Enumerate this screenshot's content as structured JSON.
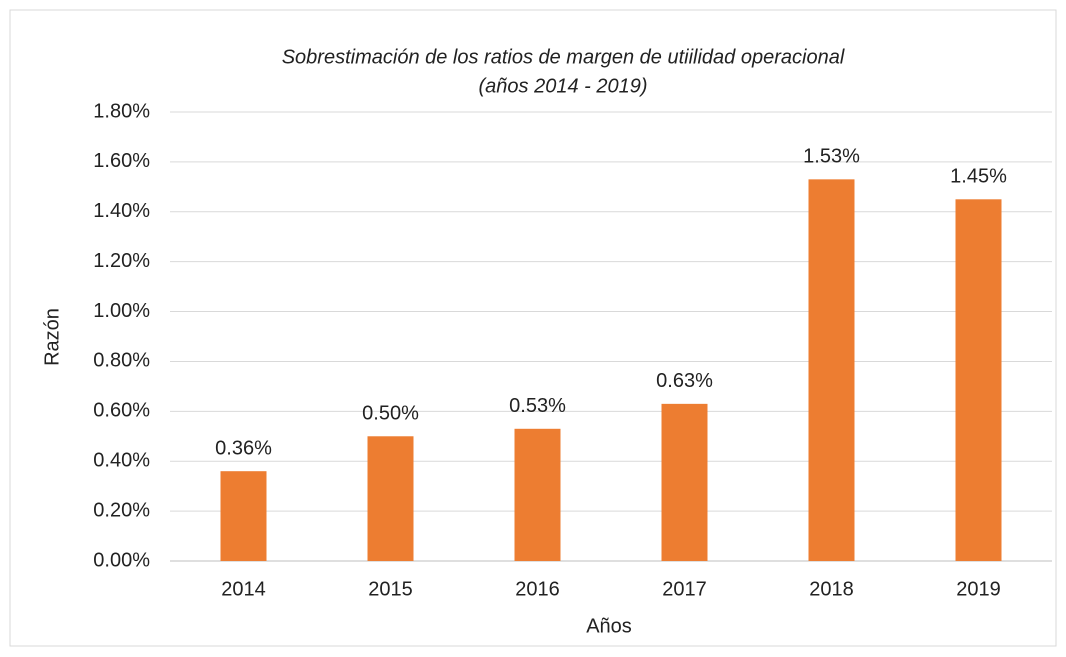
{
  "chart_data": {
    "type": "bar",
    "title": [
      "Sobrestimación de los ratios de  margen de utiilidad operacional",
      "(años 2014 - 2019)"
    ],
    "x_label": "Años",
    "y_label": "Razón",
    "categories": [
      "2014",
      "2015",
      "2016",
      "2017",
      "2018",
      "2019"
    ],
    "values": [
      0.36,
      0.5,
      0.53,
      0.63,
      1.53,
      1.45
    ],
    "value_labels": [
      "0.36%",
      "0.50%",
      "0.53%",
      "0.63%",
      "1.53%",
      "1.45%"
    ],
    "color": "#ed7d31",
    "ylim": [
      0,
      1.8
    ],
    "yticks": [
      {
        "value": 0,
        "label": "0.00%"
      },
      {
        "value": 0.2,
        "label": "0.20%"
      },
      {
        "value": 0.4,
        "label": "0.40%"
      },
      {
        "value": 0.6,
        "label": "0.60%"
      },
      {
        "value": 0.8,
        "label": "0.80%"
      },
      {
        "value": 1.0,
        "label": "1.00%"
      },
      {
        "value": 1.2,
        "label": "1.20%"
      },
      {
        "value": 1.4,
        "label": "1.40%"
      },
      {
        "value": 1.6,
        "label": "1.60%"
      },
      {
        "value": 1.8,
        "label": "1.80%"
      }
    ],
    "grid": true
  }
}
